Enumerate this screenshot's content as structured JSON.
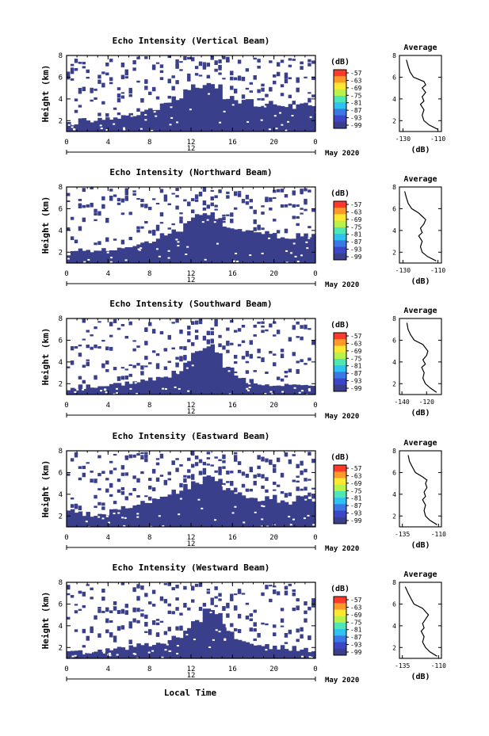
{
  "figure": {
    "xlabel": "Local Time",
    "date_label": "May 2020",
    "colorbar": {
      "unit": "(dB)",
      "ticks": [
        "-57",
        "-63",
        "-69",
        "-75",
        "-81",
        "-87",
        "-93",
        "-99"
      ],
      "colors": [
        "#ff3a2a",
        "#ff9a2a",
        "#ffe830",
        "#b8f24a",
        "#4ee6b4",
        "#2ec2f0",
        "#3a78e6",
        "#3c46c6",
        "#3a3f8c"
      ]
    },
    "echo_color": "#3a3f8c"
  },
  "chart_data": [
    {
      "type": "heatmap",
      "title": "Echo Intensity (Vertical Beam)",
      "ylabel": "Height (km)",
      "x_ticks": [
        "0",
        "4",
        "8",
        "12",
        "16",
        "20",
        "0"
      ],
      "x_sub_label": "12",
      "y_ticks": [
        "2",
        "4",
        "6",
        "8"
      ],
      "xlim": [
        0,
        24
      ],
      "ylim": [
        1,
        8
      ],
      "echo_top_km": [
        1.8,
        2.0,
        1.9,
        2.1,
        2.2,
        2.4,
        2.6,
        2.9,
        3.1,
        3.6,
        4.0,
        4.8,
        5.2,
        5.4,
        5.1,
        4.2,
        3.8,
        3.9,
        3.5,
        3.6,
        3.4,
        3.3,
        3.6,
        3.4
      ],
      "profile": {
        "title": "Average",
        "xlabel": "(dB)",
        "x_ticks": [
          "-130",
          "-110"
        ],
        "y_ticks": [
          "2",
          "4",
          "6",
          "8"
        ],
        "xlim": [
          -132,
          -108
        ],
        "ylim": [
          1,
          8
        ],
        "heights": [
          1.2,
          1.6,
          2.0,
          2.5,
          3.0,
          3.5,
          3.8,
          4.2,
          4.6,
          5.0,
          5.3,
          5.6,
          6.0,
          6.5,
          7.0,
          7.6
        ],
        "values": [
          -110,
          -115,
          -118,
          -119,
          -118,
          -120,
          -118,
          -119,
          -117,
          -119,
          -117,
          -118,
          -124,
          -126,
          -127,
          -128
        ]
      }
    },
    {
      "type": "heatmap",
      "title": "Echo Intensity (Northward Beam)",
      "ylabel": "Height (km)",
      "x_ticks": [
        "0",
        "4",
        "8",
        "12",
        "16",
        "20",
        "0"
      ],
      "x_sub_label": "12",
      "y_ticks": [
        "2",
        "4",
        "6",
        "8"
      ],
      "xlim": [
        0,
        24
      ],
      "ylim": [
        1,
        8
      ],
      "echo_top_km": [
        1.9,
        2.2,
        2.0,
        2.2,
        2.3,
        2.5,
        2.7,
        3.0,
        3.2,
        3.7,
        4.1,
        4.9,
        5.3,
        5.5,
        5.0,
        4.3,
        3.9,
        3.8,
        3.6,
        3.7,
        3.5,
        3.3,
        3.7,
        3.5
      ],
      "profile": {
        "title": "Average",
        "xlabel": "(dB)",
        "x_ticks": [
          "-130",
          "-110"
        ],
        "y_ticks": [
          "2",
          "4",
          "6",
          "8"
        ],
        "xlim": [
          -132,
          -108
        ],
        "ylim": [
          1,
          8
        ],
        "heights": [
          1.2,
          1.6,
          2.0,
          2.5,
          3.0,
          3.5,
          3.8,
          4.2,
          4.6,
          5.0,
          5.3,
          5.6,
          6.0,
          6.5,
          7.0,
          7.6
        ],
        "values": [
          -111,
          -116,
          -119,
          -120,
          -119,
          -121,
          -119,
          -120,
          -118,
          -117,
          -119,
          -121,
          -125,
          -127,
          -128,
          -129
        ]
      }
    },
    {
      "type": "heatmap",
      "title": "Echo Intensity (Southward Beam)",
      "ylabel": "Height (km)",
      "x_ticks": [
        "0",
        "4",
        "8",
        "12",
        "16",
        "20",
        "0"
      ],
      "x_sub_label": "12",
      "y_ticks": [
        "2",
        "4",
        "6",
        "8"
      ],
      "xlim": [
        0,
        24
      ],
      "ylim": [
        1,
        8
      ],
      "echo_top_km": [
        1.6,
        1.7,
        1.8,
        1.7,
        1.9,
        2.0,
        2.2,
        2.4,
        2.5,
        2.6,
        3.1,
        4.0,
        4.9,
        5.4,
        5.0,
        3.4,
        2.6,
        2.3,
        2.1,
        2.0,
        1.9,
        1.8,
        1.8,
        1.7
      ],
      "profile": {
        "title": "Average",
        "xlabel": "(dB)",
        "x_ticks": [
          "-140",
          "-120"
        ],
        "y_ticks": [
          "2",
          "4",
          "6",
          "8"
        ],
        "xlim": [
          -142,
          -108
        ],
        "ylim": [
          1,
          8
        ],
        "heights": [
          1.2,
          1.6,
          2.0,
          2.5,
          3.0,
          3.5,
          3.8,
          4.2,
          4.6,
          5.0,
          5.3,
          5.6,
          6.0,
          6.5,
          7.0,
          7.6
        ],
        "values": [
          -112,
          -117,
          -121,
          -123,
          -122,
          -124,
          -121,
          -123,
          -120,
          -119,
          -121,
          -123,
          -130,
          -133,
          -135,
          -136
        ]
      }
    },
    {
      "type": "heatmap",
      "title": "Echo Intensity (Eastward Beam)",
      "ylabel": "Height (km)",
      "x_ticks": [
        "0",
        "4",
        "8",
        "12",
        "16",
        "20",
        "0"
      ],
      "x_sub_label": "12",
      "y_ticks": [
        "2",
        "4",
        "6",
        "8"
      ],
      "xlim": [
        0,
        24
      ],
      "ylim": [
        1,
        8
      ],
      "echo_top_km": [
        2.4,
        2.2,
        2.0,
        2.3,
        2.4,
        2.7,
        2.9,
        3.2,
        3.6,
        3.9,
        4.2,
        4.7,
        5.0,
        5.6,
        5.4,
        4.4,
        4.0,
        3.8,
        3.6,
        3.7,
        3.4,
        3.3,
        3.7,
        3.4
      ],
      "profile": {
        "title": "Average",
        "xlabel": "(dB)",
        "x_ticks": [
          "-135",
          "-110"
        ],
        "y_ticks": [
          "2",
          "4",
          "6",
          "8"
        ],
        "xlim": [
          -137,
          -108
        ],
        "ylim": [
          1,
          8
        ],
        "heights": [
          1.2,
          1.6,
          2.0,
          2.5,
          3.0,
          3.5,
          3.8,
          4.2,
          4.6,
          5.0,
          5.3,
          5.6,
          6.0,
          6.5,
          7.0,
          7.6
        ],
        "values": [
          -111,
          -116,
          -119,
          -120,
          -119,
          -121,
          -119,
          -120,
          -118,
          -119,
          -118,
          -121,
          -126,
          -128,
          -130,
          -131
        ]
      }
    },
    {
      "type": "heatmap",
      "title": "Echo Intensity (Westward Beam)",
      "ylabel": "Height (km)",
      "x_ticks": [
        "0",
        "4",
        "8",
        "12",
        "16",
        "20",
        "0"
      ],
      "x_sub_label": "12",
      "y_ticks": [
        "2",
        "4",
        "6",
        "8"
      ],
      "xlim": [
        0,
        24
      ],
      "ylim": [
        1,
        8
      ],
      "echo_top_km": [
        1.6,
        1.7,
        1.8,
        1.8,
        1.9,
        2.0,
        2.2,
        2.3,
        2.4,
        2.5,
        3.0,
        3.6,
        4.4,
        5.4,
        5.2,
        3.6,
        2.8,
        2.4,
        2.2,
        2.1,
        2.0,
        1.9,
        1.8,
        1.8
      ],
      "profile": {
        "title": "Average",
        "xlabel": "(dB)",
        "x_ticks": [
          "-135",
          "-110"
        ],
        "y_ticks": [
          "2",
          "4",
          "6",
          "8"
        ],
        "xlim": [
          -137,
          -108
        ],
        "ylim": [
          1,
          8
        ],
        "heights": [
          1.2,
          1.6,
          2.0,
          2.5,
          3.0,
          3.5,
          3.8,
          4.2,
          4.6,
          5.0,
          5.3,
          5.6,
          6.0,
          6.5,
          7.0,
          7.6
        ],
        "values": [
          -111,
          -116,
          -119,
          -121,
          -120,
          -122,
          -120,
          -121,
          -119,
          -117,
          -119,
          -121,
          -127,
          -129,
          -131,
          -133
        ]
      }
    }
  ]
}
